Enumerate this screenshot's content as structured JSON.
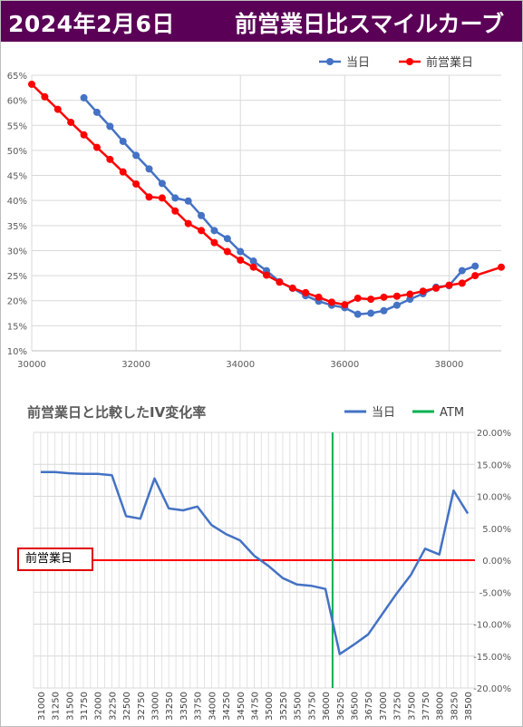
{
  "header": {
    "date": "2024年2月6日",
    "title": "前営業日比スマイルカーブ"
  },
  "colors": {
    "header_bg": "#5b0057",
    "today": "#4472c4",
    "prev": "#ff0000",
    "iv_line": "#4472c4",
    "atm": "#00b050",
    "ref_line": "#ff0000"
  },
  "chart_data": [
    {
      "type": "line",
      "legend_placement": "top-right",
      "x_ticks": [
        30000,
        32000,
        34000,
        36000,
        38000
      ],
      "y_ticks": [
        "10%",
        "15%",
        "20%",
        "25%",
        "30%",
        "35%",
        "40%",
        "45%",
        "50%",
        "55%",
        "60%",
        "65%"
      ],
      "xlim": [
        30000,
        39000
      ],
      "ylim": [
        10,
        65
      ],
      "grid": true,
      "series": [
        {
          "name": "当日",
          "x": [
            31000,
            31250,
            31500,
            31750,
            32000,
            32250,
            32500,
            32750,
            33000,
            33250,
            33500,
            33750,
            34000,
            34250,
            34500,
            34750,
            35000,
            35250,
            35500,
            35750,
            36000,
            36250,
            36500,
            36750,
            37000,
            37250,
            37500,
            37750,
            38000,
            38250,
            38500
          ],
          "y": [
            60.5,
            57.6,
            54.8,
            51.8,
            49.0,
            46.3,
            43.4,
            40.5,
            39.9,
            37.0,
            34.0,
            32.4,
            29.8,
            27.9,
            26.0,
            23.8,
            22.5,
            21.0,
            19.9,
            19.1,
            18.6,
            17.3,
            17.5,
            18.0,
            19.1,
            20.3,
            21.4,
            22.7,
            23.0,
            26.0,
            26.9
          ]
        },
        {
          "name": "前営業日",
          "x": [
            30000,
            30250,
            30500,
            30750,
            31000,
            31250,
            31500,
            31750,
            32000,
            32250,
            32500,
            32750,
            33000,
            33250,
            33500,
            33750,
            34000,
            34250,
            34500,
            34750,
            35000,
            35250,
            35500,
            35750,
            36000,
            36250,
            36500,
            36750,
            37000,
            37250,
            37500,
            37750,
            38000,
            38250,
            38500,
            39000
          ],
          "y": [
            63.2,
            60.7,
            58.2,
            55.6,
            53.1,
            50.6,
            48.2,
            45.7,
            43.3,
            40.7,
            40.5,
            37.9,
            35.4,
            34.0,
            31.6,
            29.8,
            28.1,
            26.7,
            25.1,
            23.7,
            22.5,
            21.6,
            20.7,
            19.7,
            19.2,
            20.5,
            20.3,
            20.7,
            20.9,
            21.3,
            21.9,
            22.5,
            23.1,
            23.5,
            25.0,
            26.7
          ]
        }
      ]
    },
    {
      "type": "line",
      "title": "前営業日と比較したIV変化率",
      "legend_placement": "top-right",
      "categories": [
        "31000",
        "31250",
        "31500",
        "31750",
        "32000",
        "32250",
        "32500",
        "32750",
        "33000",
        "33250",
        "33500",
        "33750",
        "34000",
        "34250",
        "34500",
        "34750",
        "35000",
        "35250",
        "35500",
        "35750",
        "36000",
        "36250",
        "36500",
        "36750",
        "37000",
        "37250",
        "37500",
        "37750",
        "38000",
        "38250",
        "38500"
      ],
      "y_ticks": [
        "20.00%",
        "15.00%",
        "10.00%",
        "5.00%",
        "0.00%",
        "-5.00%",
        "-10.00%",
        "-15.00%",
        "-20.00%"
      ],
      "ylim": [
        -20,
        20
      ],
      "grid": true,
      "series": [
        {
          "name": "当日",
          "values": [
            13.8,
            13.8,
            13.6,
            13.5,
            13.5,
            13.3,
            6.9,
            6.5,
            12.8,
            8.1,
            7.8,
            8.4,
            5.5,
            4.1,
            3.1,
            0.7,
            -0.9,
            -2.8,
            -3.8,
            -4.0,
            -4.5,
            -14.7,
            -13.2,
            -11.6,
            -8.4,
            -5.2,
            -2.3,
            1.8,
            0.9,
            10.9,
            7.3
          ]
        },
        {
          "name": "ATM",
          "x_value": "36125"
        }
      ],
      "reference_line": {
        "label": "前営業日",
        "value": 0
      }
    }
  ]
}
